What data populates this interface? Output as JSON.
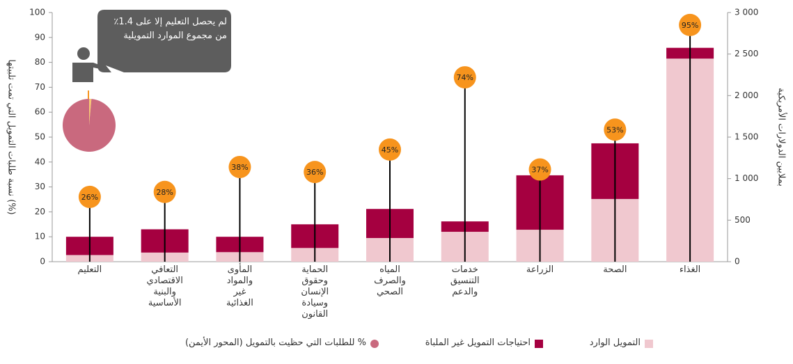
{
  "chart_data": {
    "type": "bar",
    "stacked": true,
    "categories": [
      "التعليم",
      "التعافي\nالاقتصادي\nوالبنية\nالأساسية",
      "المأوى\nوالمواد\nغير\nالغذائية",
      "الحماية\nوحقوق\nالإنسان\nوسيادة\nالقانون",
      "المياه\nوالصرف\nالصحي",
      "خدمات\nالتنسيق\nوالدعم",
      "الزراعة",
      "الصحة",
      "الغذاء"
    ],
    "series": [
      {
        "name": "التمويل الوارد",
        "color": "#f0c8cf",
        "axis": "y2",
        "values": [
          80,
          110,
          115,
          165,
          285,
          360,
          385,
          755,
          2445
        ]
      },
      {
        "name": "احتياجات التمويل غير الملباة",
        "color": "#a50040",
        "axis": "y2",
        "values": [
          220,
          280,
          185,
          285,
          350,
          125,
          655,
          670,
          130
        ]
      },
      {
        "name": "% للطلبات التي حظيت بالتمويل (المحور الأيمن)",
        "type": "lollipop",
        "color": "#f7941d",
        "values": [
          26,
          28,
          38,
          36,
          45,
          74,
          37,
          53,
          95
        ],
        "value_labels": [
          "26%",
          "28%",
          "38%",
          "36%",
          "45%",
          "74%",
          "37%",
          "53%",
          "95%"
        ]
      }
    ],
    "y_label": "نسبة طلبات التمويل التي تمت تلبيتها (%)",
    "y2_label": "بملايين الدولارات الأمريكية",
    "ylim": [
      0,
      100
    ],
    "yticks": [
      0,
      10,
      20,
      30,
      40,
      50,
      60,
      70,
      80,
      90,
      100
    ],
    "y2lim": [
      0,
      3000
    ],
    "y2ticks": [
      0,
      500,
      {
        "value": 1000,
        "label": "1 000"
      },
      {
        "value": 1500,
        "label": "1 500"
      },
      {
        "value": 2000,
        "label": "2 000"
      },
      {
        "value": 2500,
        "label": "2 500"
      },
      {
        "value": 3000,
        "label": "3 000"
      }
    ],
    "annotation": "لم يحصل التعليم إلا على 1.4٪ من مجموع الموارد التمويلية",
    "inset_pie": {
      "values": [
        1.4,
        98.6
      ],
      "colors": [
        "#f7c873",
        "#c9697e"
      ]
    },
    "legend": "bottom"
  }
}
